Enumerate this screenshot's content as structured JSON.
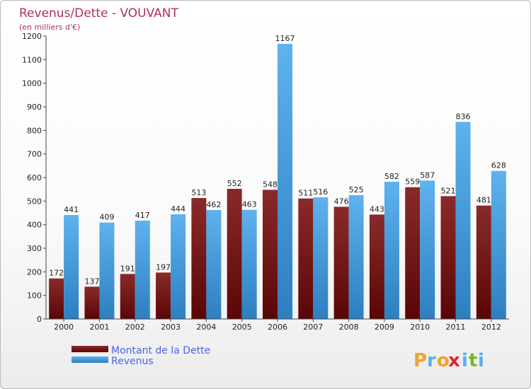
{
  "chart_data": {
    "type": "bar",
    "title": "Revenus/Dette - VOUVANT",
    "subtitle": "(en milliers d'€)",
    "categories": [
      "2000",
      "2001",
      "2002",
      "2003",
      "2004",
      "2005",
      "2006",
      "2007",
      "2008",
      "2009",
      "2010",
      "2011",
      "2012"
    ],
    "series": [
      {
        "name": "Montant de la Dette",
        "color": "#7a1818",
        "values": [
          172,
          137,
          191,
          197,
          513,
          552,
          548,
          511,
          476,
          443,
          559,
          521,
          481
        ]
      },
      {
        "name": "Revenus",
        "color": "#4aa3e6",
        "values": [
          441,
          409,
          417,
          444,
          462,
          463,
          1167,
          516,
          525,
          582,
          587,
          836,
          628
        ]
      }
    ],
    "ylim": [
      0,
      1200
    ],
    "yticks": [
      0,
      100,
      200,
      300,
      400,
      500,
      600,
      700,
      800,
      900,
      1000,
      1100,
      1200
    ],
    "grid": false,
    "legend_position": "bottom-left"
  },
  "logo": {
    "letters": [
      "P",
      "r",
      "o",
      "x",
      "i",
      "t",
      "i"
    ],
    "colors": [
      "#f2a12a",
      "#5bb0e8",
      "#f2a12a",
      "#e2252d",
      "#5bb0e8",
      "#77b82a",
      "#5bb0e8"
    ]
  }
}
